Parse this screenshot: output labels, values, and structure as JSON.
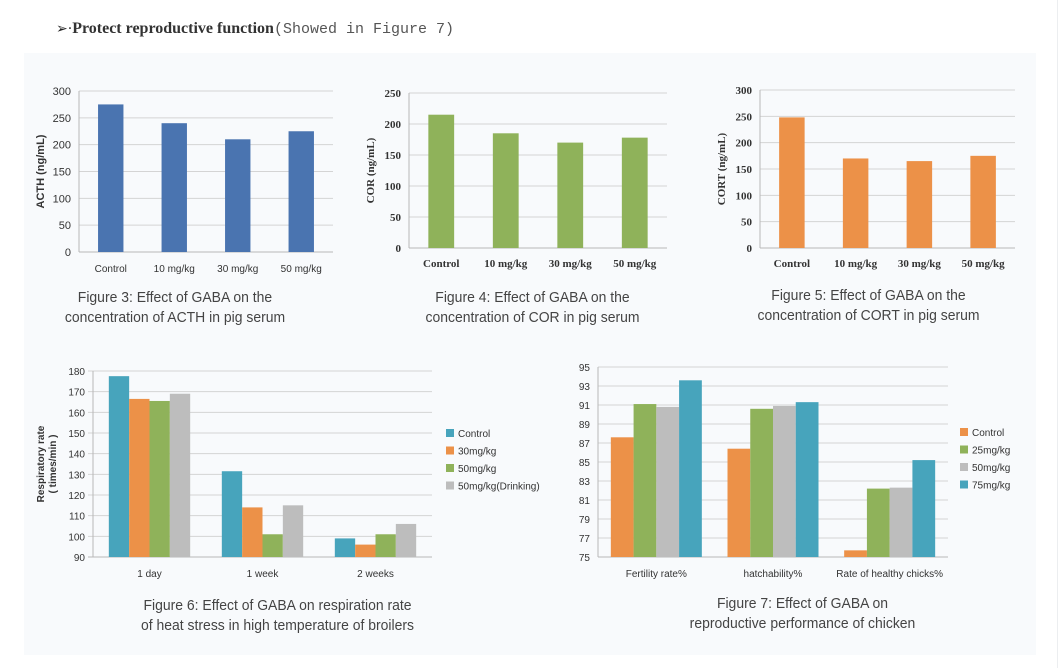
{
  "heading": {
    "arrow": "➢·",
    "title": "Protect reproductive function",
    "note": "(Showed in Figure 7)"
  },
  "captions": [
    {
      "line1": "Figure 3: Effect of GABA on the",
      "line2": "concentration of ACTH in pig serum"
    },
    {
      "line1": "Figure 4: Effect of GABA on the",
      "line2": "concentration of COR in pig serum"
    },
    {
      "line1": "Figure 5: Effect of GABA on the",
      "line2": "concentration of CORT in pig serum"
    },
    {
      "line1": "Figure 6: Effect of GABA on respiration rate",
      "line2": "of heat stress in high temperature of broilers"
    },
    {
      "line1": "Figure 7: Effect of GABA on",
      "line2": "reproductive performance of chicken"
    }
  ],
  "chart_data": [
    {
      "id": "fig3",
      "type": "bar",
      "title": "Figure 3: Effect of GABA on the concentration of ACTH in pig serum",
      "categories": [
        "Control",
        "10 mg/kg",
        "30 mg/kg",
        "50 mg/kg"
      ],
      "series": [
        {
          "name": "ACTH",
          "values": [
            275,
            240,
            210,
            225
          ],
          "color": "#4a74b0"
        }
      ],
      "xlabel": "",
      "ylabel": "ACTH (ng/mL)",
      "ylim": [
        0,
        300
      ],
      "yticks": [
        0,
        50,
        100,
        150,
        200,
        250,
        300
      ],
      "grid": true,
      "legend": "none"
    },
    {
      "id": "fig4",
      "type": "bar",
      "title": "Figure 4: Effect of GABA on the concentration of COR in pig serum",
      "categories": [
        "Control",
        "10 mg/kg",
        "30 mg/kg",
        "50 mg/kg"
      ],
      "series": [
        {
          "name": "COR",
          "values": [
            215,
            185,
            170,
            178
          ],
          "color": "#8fb25a"
        }
      ],
      "xlabel": "",
      "ylabel": "COR (ng/mL)",
      "ylim": [
        0,
        250
      ],
      "yticks": [
        0,
        50,
        100,
        150,
        200,
        250
      ],
      "grid": true,
      "legend": "none"
    },
    {
      "id": "fig5",
      "type": "bar",
      "title": "Figure 5: Effect of GABA on the concentration of CORT in pig serum",
      "categories": [
        "Control",
        "10 mg/kg",
        "30 mg/kg",
        "50 mg/kg"
      ],
      "series": [
        {
          "name": "CORT",
          "values": [
            248,
            170,
            165,
            175
          ],
          "color": "#ec9148"
        }
      ],
      "xlabel": "",
      "ylabel": "CORT (ng/mL)",
      "ylim": [
        0,
        300
      ],
      "yticks": [
        0,
        50,
        100,
        150,
        200,
        250,
        300
      ],
      "grid": true,
      "legend": "none"
    },
    {
      "id": "fig6",
      "type": "bar",
      "title": "Figure 6: Effect of GABA on respiration rate of heat stress in high temperature of broilers",
      "categories": [
        "1 day",
        "1 week",
        "2 weeks"
      ],
      "series": [
        {
          "name": "Control",
          "values": [
            177.5,
            131.5,
            99
          ],
          "color": "#47a4bc"
        },
        {
          "name": "30mg/kg",
          "values": [
            166.5,
            114,
            96
          ],
          "color": "#ec9148"
        },
        {
          "name": "50mg/kg",
          "values": [
            165.5,
            101,
            101
          ],
          "color": "#8fb25a"
        },
        {
          "name": "50mg/kg(Drinking)",
          "values": [
            169,
            115,
            106
          ],
          "color": "#bdbdbd"
        }
      ],
      "xlabel": "",
      "ylabel": "Respiratory rate (times/min)",
      "ylim": [
        90,
        180
      ],
      "yticks": [
        90,
        100,
        110,
        120,
        130,
        140,
        150,
        160,
        170,
        180
      ],
      "grid": true,
      "legend": "right"
    },
    {
      "id": "fig7",
      "type": "bar",
      "title": "Figure 7: Effect of GABA on reproductive performance of chicken",
      "categories": [
        "Fertility rate%",
        "hatchability%",
        "Rate of healthy chicks%"
      ],
      "series": [
        {
          "name": "Control",
          "values": [
            87.6,
            86.4,
            75.7
          ],
          "color": "#ec9148"
        },
        {
          "name": "25mg/kg",
          "values": [
            91.1,
            90.6,
            82.2
          ],
          "color": "#8fb25a"
        },
        {
          "name": "50mg/kg",
          "values": [
            90.8,
            90.9,
            82.3
          ],
          "color": "#bdbdbd"
        },
        {
          "name": "75mg/kg",
          "values": [
            93.6,
            91.3,
            85.2
          ],
          "color": "#47a4bc"
        }
      ],
      "xlabel": "",
      "ylabel": "",
      "ylim": [
        75,
        95
      ],
      "yticks": [
        75,
        77,
        79,
        81,
        83,
        85,
        87,
        89,
        91,
        93,
        95
      ],
      "grid": true,
      "legend": "right"
    }
  ]
}
